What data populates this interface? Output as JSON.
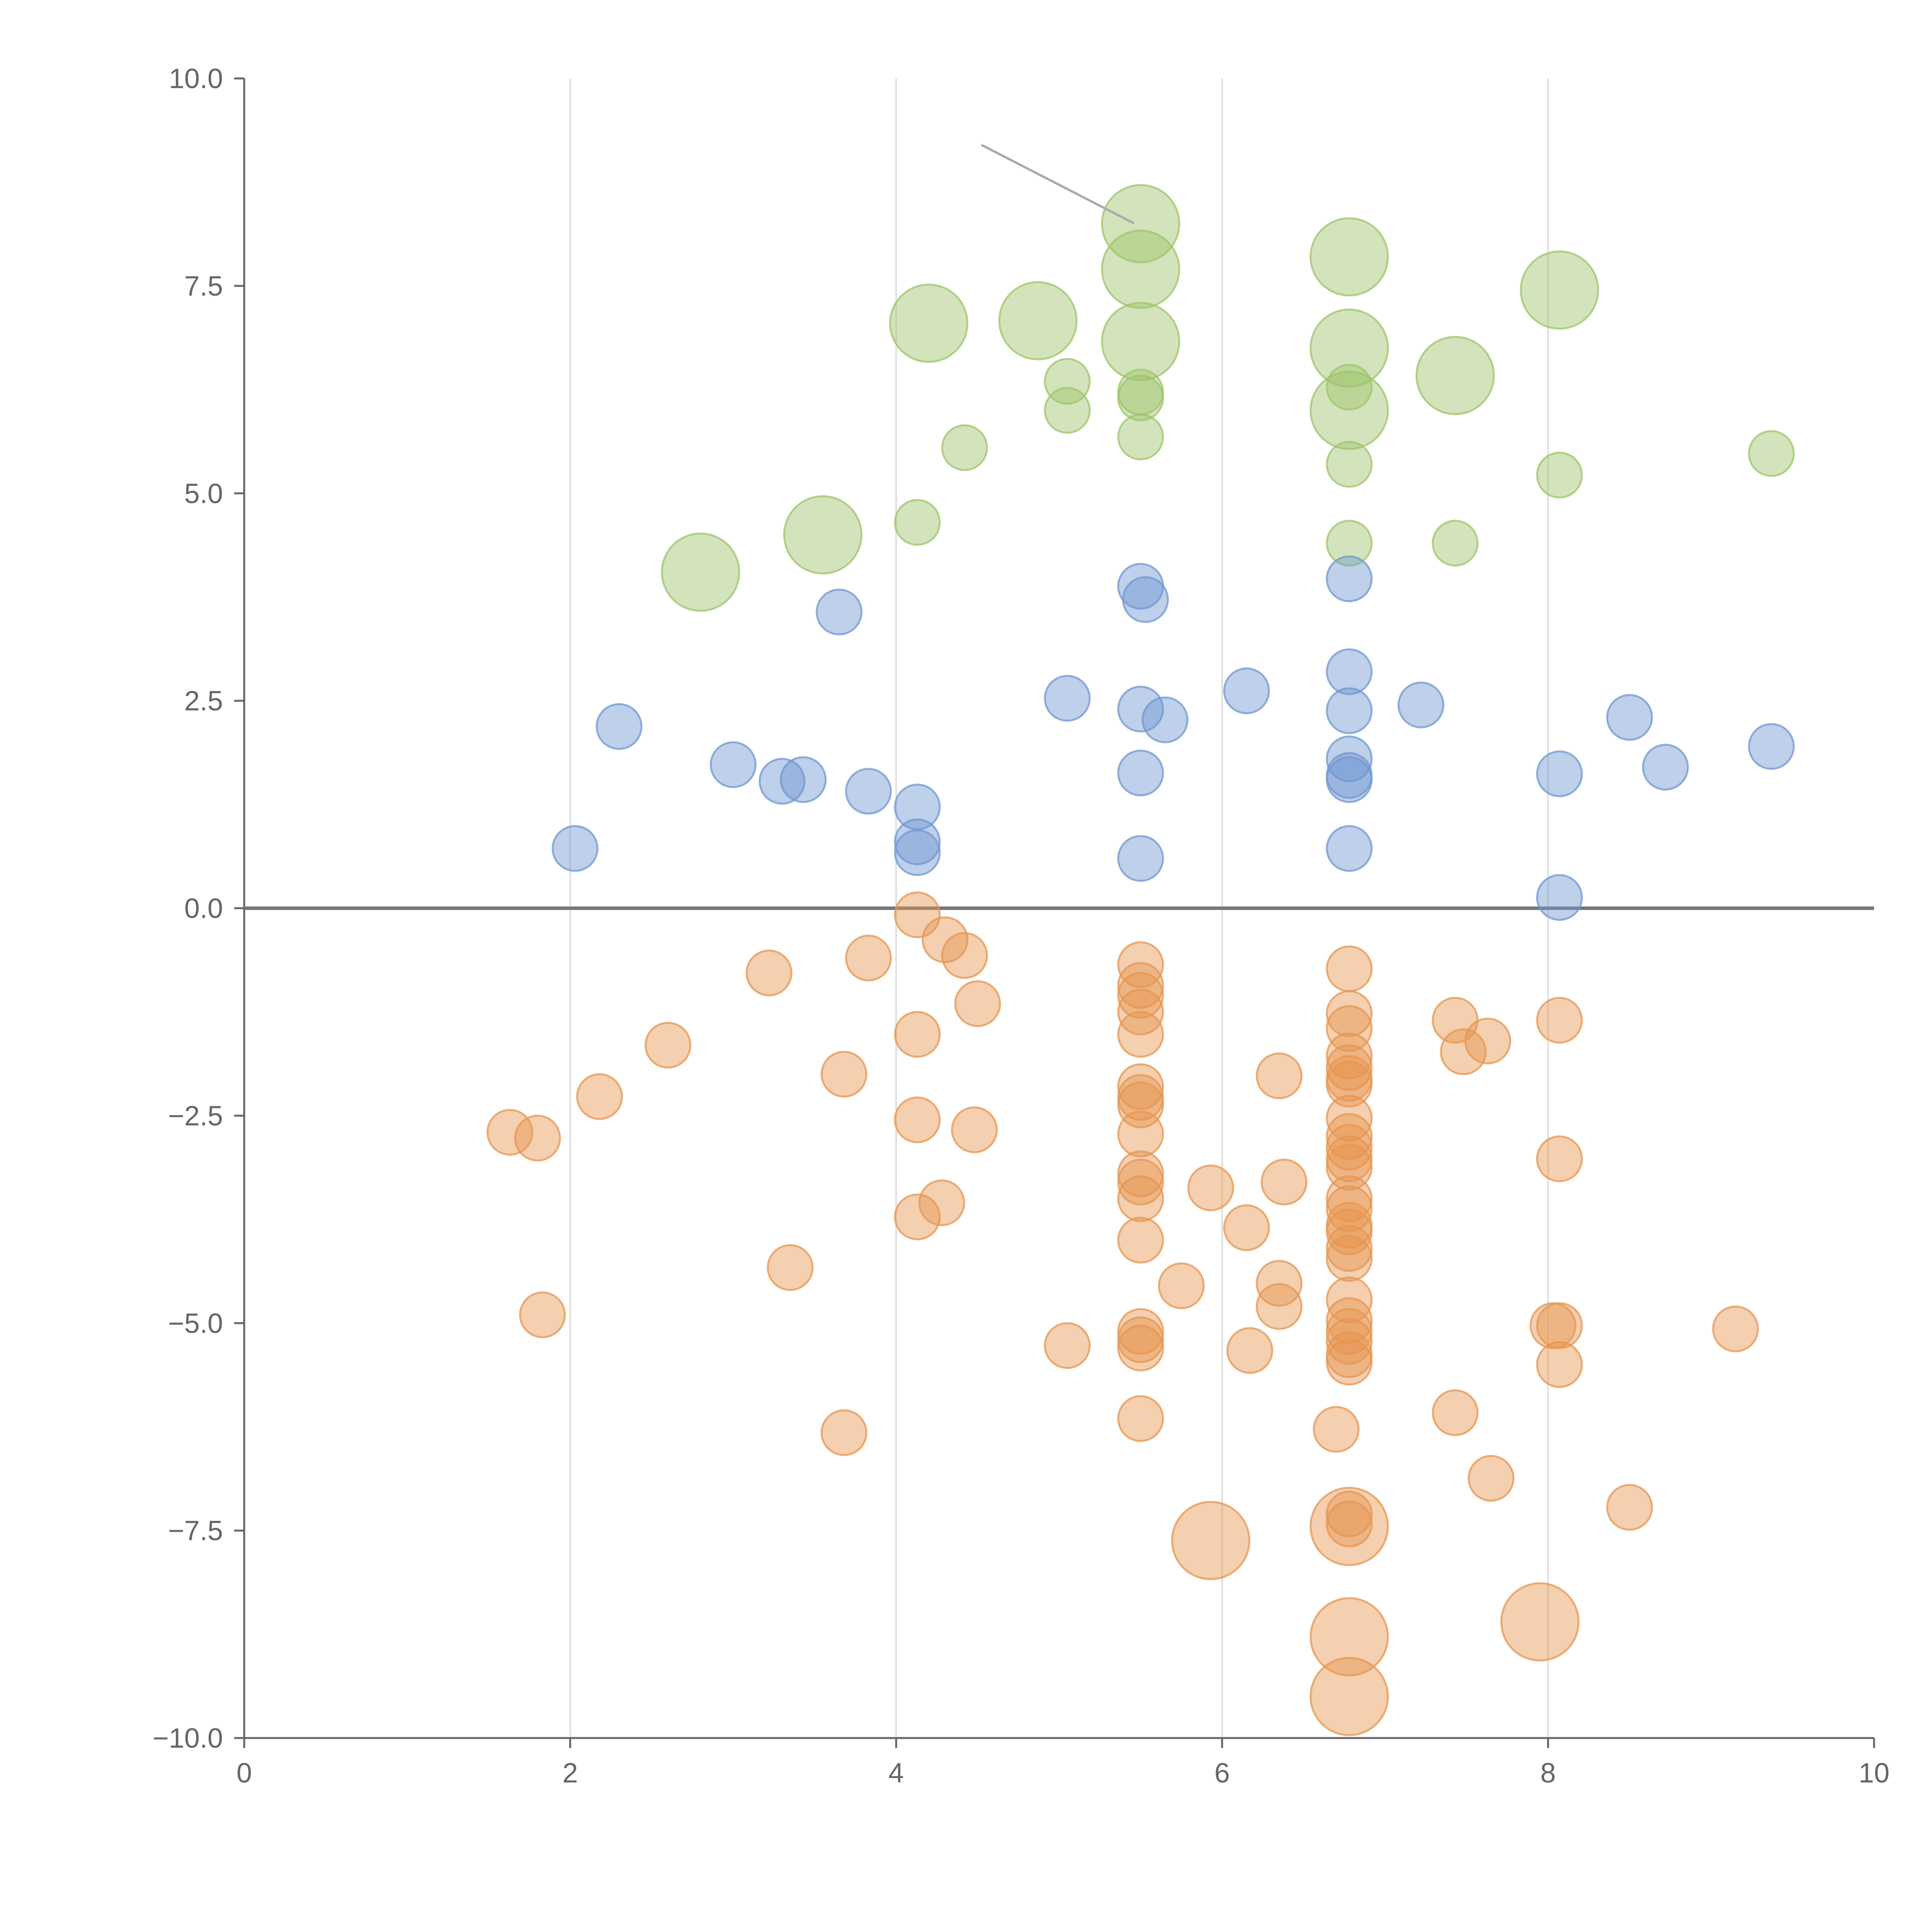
{
  "chart_data": {
    "type": "scatter",
    "title": "",
    "xlabel": "",
    "ylabel": "",
    "xlim": [
      0,
      10
    ],
    "ylim": [
      -10,
      10
    ],
    "x_ticks": [
      0,
      2,
      4,
      6,
      8,
      10
    ],
    "y_ticks": [
      -10,
      -7.5,
      -5,
      -2.5,
      0,
      2.5,
      5,
      7.5,
      10
    ],
    "x_tick_labels": [
      "0",
      "2",
      "4",
      "6",
      "8",
      "10"
    ],
    "y_tick_labels": [
      "−10.0",
      "−7.5",
      "−5.0",
      "−2.5",
      "0.0",
      "2.5",
      "5.0",
      "7.5",
      "10.0"
    ],
    "vertical_grid": true,
    "horizontal_grid": false,
    "zero_line": true,
    "legend": "none",
    "colors": {
      "green": "#9dc46a",
      "blue": "#6f97d1",
      "orange": "#e69550",
      "axis": "#666666",
      "grid": "#dddddd",
      "zero_line": "#777777",
      "annotation_line": "#aaaaaa"
    },
    "marker_opacity": 0.45,
    "series": [
      {
        "color": "green",
        "points": [
          [
            5.5,
            8.25,
            3
          ],
          [
            5.5,
            7.7,
            3
          ],
          [
            6.78,
            7.85,
            3
          ],
          [
            8.07,
            7.45,
            3
          ],
          [
            4.2,
            7.05,
            3
          ],
          [
            4.87,
            7.08,
            3
          ],
          [
            5.5,
            6.83,
            3
          ],
          [
            6.78,
            6.75,
            3
          ],
          [
            7.43,
            6.42,
            3
          ],
          [
            6.78,
            6.0,
            3
          ],
          [
            3.55,
            4.5,
            3
          ],
          [
            2.8,
            4.05,
            3
          ],
          [
            5.05,
            6.35,
            1
          ],
          [
            5.5,
            6.22,
            1
          ],
          [
            5.5,
            6.15,
            1
          ],
          [
            6.78,
            6.28,
            1
          ],
          [
            5.05,
            6.0,
            1
          ],
          [
            4.42,
            5.55,
            1
          ],
          [
            5.5,
            5.68,
            1
          ],
          [
            6.78,
            5.35,
            1
          ],
          [
            8.07,
            5.22,
            1
          ],
          [
            9.37,
            5.48,
            1
          ],
          [
            4.13,
            4.65,
            1
          ],
          [
            6.78,
            4.4,
            1
          ],
          [
            7.43,
            4.4,
            1
          ]
        ]
      },
      {
        "color": "blue",
        "points": [
          [
            5.5,
            3.88,
            1
          ],
          [
            5.53,
            3.72,
            1
          ],
          [
            6.78,
            3.97,
            1
          ],
          [
            3.65,
            3.57,
            1
          ],
          [
            6.78,
            2.85,
            1
          ],
          [
            6.15,
            2.62,
            1
          ],
          [
            5.05,
            2.53,
            1
          ],
          [
            7.22,
            2.45,
            1
          ],
          [
            5.5,
            2.4,
            1
          ],
          [
            6.78,
            2.38,
            1
          ],
          [
            5.65,
            2.27,
            1
          ],
          [
            8.5,
            2.3,
            1
          ],
          [
            2.3,
            2.19,
            1
          ],
          [
            9.37,
            1.95,
            1
          ],
          [
            3.0,
            1.73,
            1
          ],
          [
            8.72,
            1.7,
            1
          ],
          [
            6.78,
            1.8,
            1
          ],
          [
            5.5,
            1.63,
            1
          ],
          [
            8.07,
            1.62,
            1
          ],
          [
            6.78,
            1.6,
            1
          ],
          [
            6.78,
            1.55,
            1
          ],
          [
            3.3,
            1.53,
            1
          ],
          [
            3.43,
            1.55,
            1
          ],
          [
            3.83,
            1.41,
            1
          ],
          [
            4.13,
            1.22,
            1
          ],
          [
            4.13,
            0.8,
            1
          ],
          [
            4.13,
            0.67,
            1
          ],
          [
            2.03,
            0.72,
            1
          ],
          [
            6.78,
            0.72,
            1
          ],
          [
            5.5,
            0.6,
            1
          ],
          [
            8.07,
            0.13,
            1
          ]
        ]
      },
      {
        "color": "orange",
        "points": [
          [
            4.13,
            -0.08,
            1
          ],
          [
            4.3,
            -0.38,
            1
          ],
          [
            4.42,
            -0.57,
            1
          ],
          [
            3.83,
            -0.6,
            1
          ],
          [
            3.22,
            -0.78,
            1
          ],
          [
            5.5,
            -0.68,
            1
          ],
          [
            6.78,
            -0.73,
            1
          ],
          [
            5.5,
            -0.93,
            1
          ],
          [
            5.5,
            -1.05,
            1
          ],
          [
            4.5,
            -1.15,
            1
          ],
          [
            5.5,
            -1.25,
            1
          ],
          [
            6.78,
            -1.27,
            1
          ],
          [
            7.43,
            -1.35,
            1
          ],
          [
            8.07,
            -1.35,
            1
          ],
          [
            6.78,
            -1.45,
            1
          ],
          [
            5.5,
            -1.52,
            1
          ],
          [
            4.13,
            -1.52,
            1
          ],
          [
            7.63,
            -1.6,
            1
          ],
          [
            2.6,
            -1.65,
            1
          ],
          [
            7.48,
            -1.73,
            1
          ],
          [
            6.78,
            -1.78,
            1
          ],
          [
            6.78,
            -1.92,
            1
          ],
          [
            3.68,
            -2.0,
            1
          ],
          [
            6.35,
            -2.02,
            1
          ],
          [
            6.78,
            -2.05,
            1
          ],
          [
            6.78,
            -2.12,
            1
          ],
          [
            5.5,
            -2.15,
            1
          ],
          [
            5.5,
            -2.28,
            1
          ],
          [
            2.18,
            -2.27,
            1
          ],
          [
            5.5,
            -2.37,
            1
          ],
          [
            6.78,
            -2.53,
            1
          ],
          [
            4.13,
            -2.55,
            1
          ],
          [
            1.63,
            -2.7,
            1
          ],
          [
            4.48,
            -2.67,
            1
          ],
          [
            1.8,
            -2.77,
            1
          ],
          [
            5.5,
            -2.72,
            1
          ],
          [
            6.78,
            -2.75,
            1
          ],
          [
            6.78,
            -2.88,
            1
          ],
          [
            6.78,
            -3.02,
            1
          ],
          [
            8.07,
            -3.02,
            1
          ],
          [
            6.78,
            -3.12,
            1
          ],
          [
            5.5,
            -3.2,
            1
          ],
          [
            6.38,
            -3.3,
            1
          ],
          [
            5.5,
            -3.3,
            1
          ],
          [
            5.93,
            -3.37,
            1
          ],
          [
            5.5,
            -3.5,
            1
          ],
          [
            6.78,
            -3.5,
            1
          ],
          [
            4.28,
            -3.55,
            1
          ],
          [
            6.78,
            -3.62,
            1
          ],
          [
            4.13,
            -3.72,
            1
          ],
          [
            6.15,
            -3.85,
            1
          ],
          [
            6.78,
            -3.82,
            1
          ],
          [
            6.78,
            -3.9,
            1
          ],
          [
            5.5,
            -4.0,
            1
          ],
          [
            6.78,
            -4.1,
            1
          ],
          [
            6.78,
            -4.22,
            1
          ],
          [
            3.35,
            -4.33,
            1
          ],
          [
            6.35,
            -4.52,
            1
          ],
          [
            5.75,
            -4.55,
            1
          ],
          [
            6.78,
            -4.72,
            1
          ],
          [
            6.35,
            -4.8,
            1
          ],
          [
            1.83,
            -4.9,
            1
          ],
          [
            6.78,
            -4.97,
            1
          ],
          [
            8.03,
            -5.03,
            1
          ],
          [
            8.07,
            -5.03,
            1
          ],
          [
            9.15,
            -5.07,
            1
          ],
          [
            6.78,
            -5.1,
            1
          ],
          [
            5.5,
            -5.1,
            1
          ],
          [
            5.5,
            -5.2,
            1
          ],
          [
            6.78,
            -5.22,
            1
          ],
          [
            5.05,
            -5.27,
            1
          ],
          [
            5.5,
            -5.3,
            1
          ],
          [
            6.17,
            -5.33,
            1
          ],
          [
            6.78,
            -5.38,
            1
          ],
          [
            6.78,
            -5.47,
            1
          ],
          [
            8.07,
            -5.5,
            1
          ],
          [
            5.5,
            -6.15,
            1
          ],
          [
            7.43,
            -6.08,
            1
          ],
          [
            3.68,
            -6.32,
            1
          ],
          [
            6.7,
            -6.28,
            1
          ],
          [
            7.65,
            -6.87,
            1
          ],
          [
            8.5,
            -7.22,
            1
          ],
          [
            6.78,
            -7.3,
            1
          ],
          [
            6.78,
            -7.42,
            1
          ],
          [
            6.78,
            -7.45,
            3
          ],
          [
            5.93,
            -7.62,
            3
          ],
          [
            7.95,
            -8.6,
            3
          ],
          [
            6.78,
            -8.78,
            3
          ],
          [
            6.78,
            -9.5,
            3
          ]
        ]
      }
    ]
  }
}
